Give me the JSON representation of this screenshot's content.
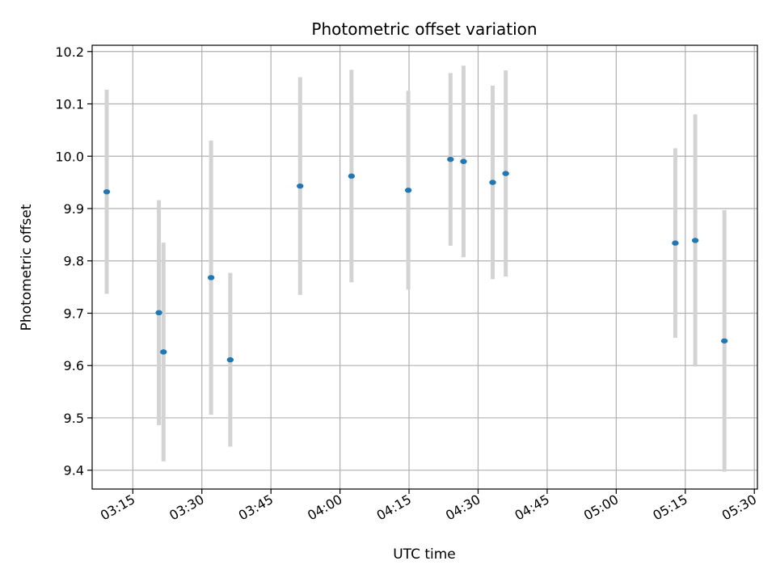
{
  "chart_data": {
    "type": "scatter",
    "title": "Photometric offset variation",
    "xlabel": "UTC time",
    "ylabel": "Photometric offset",
    "xlim": [
      "03:06:10",
      "05:30:40"
    ],
    "ylim": [
      9.364,
      10.212
    ],
    "grid": true,
    "x_ticks": [
      "03:15",
      "03:30",
      "03:45",
      "04:00",
      "04:15",
      "04:30",
      "04:45",
      "05:00",
      "05:15",
      "05:30"
    ],
    "y_ticks": [
      "9.4",
      "9.5",
      "9.6",
      "9.7",
      "9.8",
      "9.9",
      "10.0",
      "10.1",
      "10.2"
    ],
    "colors": {
      "point": "#1f77b4",
      "errorbar": "#d3d3d3",
      "grid": "#b0b0b0"
    },
    "points": [
      {
        "x": "03:09:20",
        "y": 9.932,
        "err": 0.195
      },
      {
        "x": "03:20:40",
        "y": 9.701,
        "err": 0.215
      },
      {
        "x": "03:21:40",
        "y": 9.626,
        "err": 0.209
      },
      {
        "x": "03:32:00",
        "y": 9.768,
        "err": 0.262
      },
      {
        "x": "03:36:10",
        "y": 9.611,
        "err": 0.166
      },
      {
        "x": "03:51:20",
        "y": 9.943,
        "err": 0.208
      },
      {
        "x": "04:02:30",
        "y": 9.962,
        "err": 0.203
      },
      {
        "x": "04:14:50",
        "y": 9.935,
        "err": 0.19
      },
      {
        "x": "04:24:00",
        "y": 9.994,
        "err": 0.165
      },
      {
        "x": "04:26:50",
        "y": 9.99,
        "err": 0.183
      },
      {
        "x": "04:33:10",
        "y": 9.95,
        "err": 0.185
      },
      {
        "x": "04:36:00",
        "y": 9.967,
        "err": 0.197
      },
      {
        "x": "05:12:50",
        "y": 9.834,
        "err": 0.181
      },
      {
        "x": "05:17:10",
        "y": 9.839,
        "err": 0.241
      },
      {
        "x": "05:23:30",
        "y": 9.647,
        "err": 0.25
      }
    ]
  }
}
